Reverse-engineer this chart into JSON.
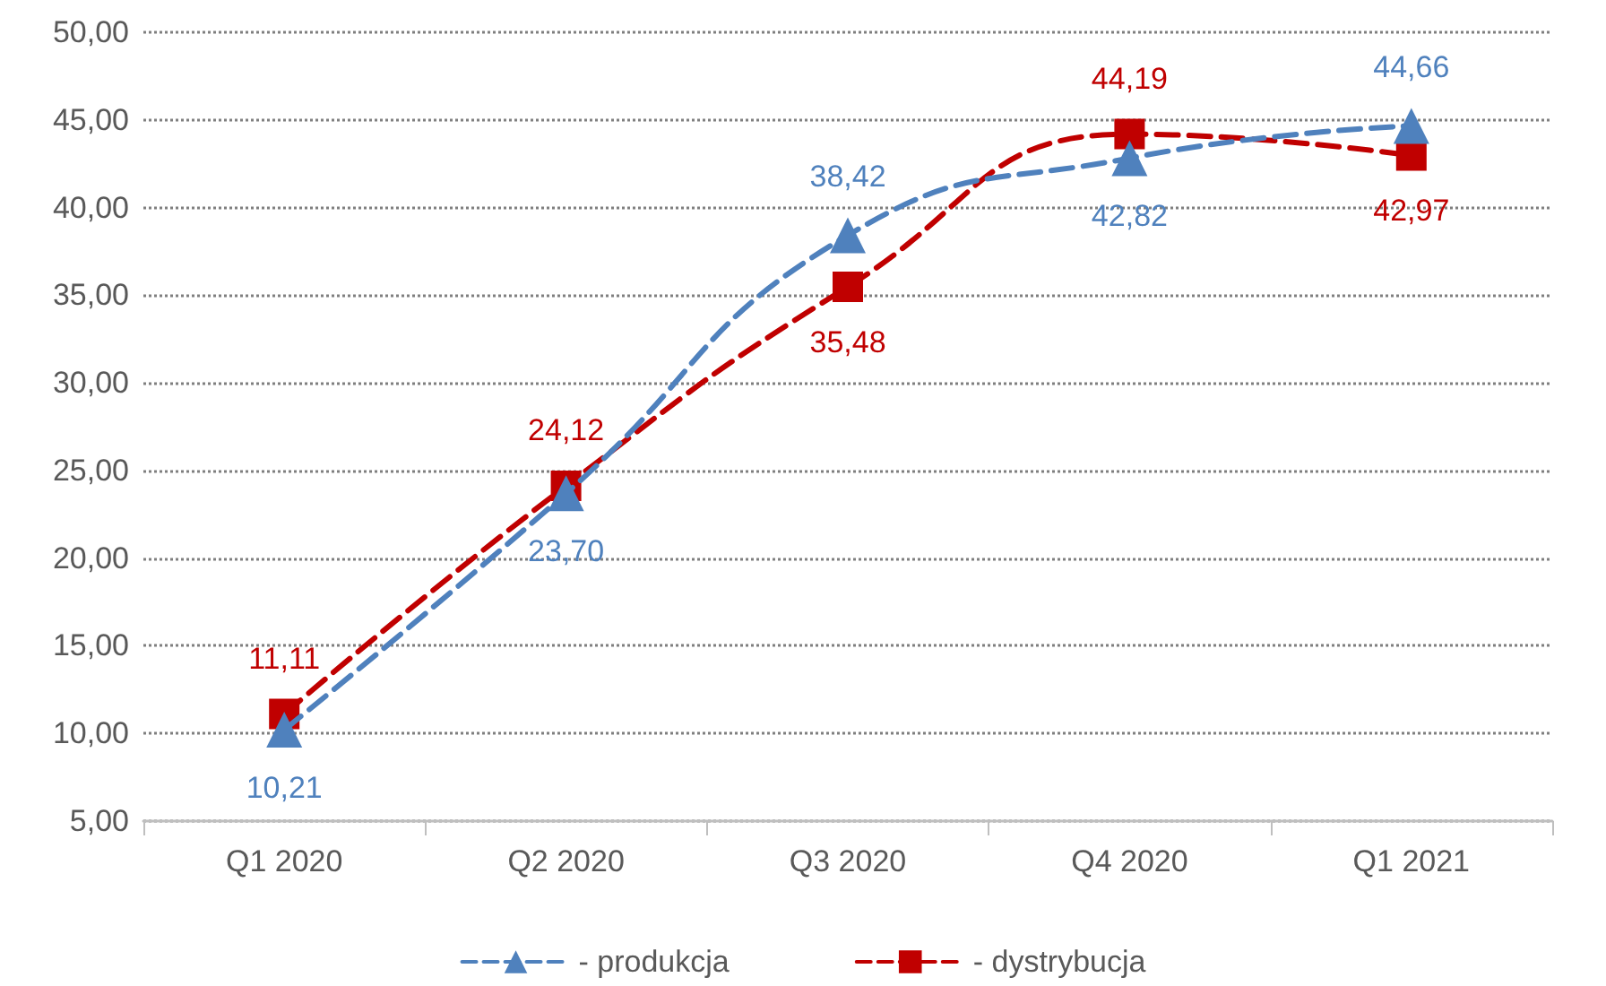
{
  "chart_data": {
    "type": "line",
    "categories": [
      "Q1 2020",
      "Q2 2020",
      "Q3 2020",
      "Q4 2020",
      "Q1 2021"
    ],
    "series": [
      {
        "name": "- produkcja",
        "color": "#4f81bd",
        "marker": "triangle",
        "values": [
          10.21,
          23.7,
          38.42,
          42.82,
          44.66
        ],
        "value_labels": [
          "10,21",
          "23,70",
          "38,42",
          "42,82",
          "44,66"
        ]
      },
      {
        "name": "- dystrybucja",
        "color": "#c00000",
        "marker": "square",
        "values": [
          11.11,
          24.12,
          35.48,
          44.19,
          42.97
        ],
        "value_labels": [
          "11,11",
          "24,12",
          "35,48",
          "44,19",
          "42,97"
        ]
      }
    ],
    "ylim": [
      5,
      50
    ],
    "yticks": [
      {
        "value": 5,
        "label": "5,00"
      },
      {
        "value": 10,
        "label": "10,00"
      },
      {
        "value": 15,
        "label": "15,00"
      },
      {
        "value": 20,
        "label": "20,00"
      },
      {
        "value": 25,
        "label": "25,00"
      },
      {
        "value": 30,
        "label": "30,00"
      },
      {
        "value": 35,
        "label": "35,00"
      },
      {
        "value": 40,
        "label": "40,00"
      },
      {
        "value": 45,
        "label": "45,00"
      },
      {
        "value": 50,
        "label": "50,00"
      }
    ],
    "grid": "y",
    "legend": "bottom",
    "line_style": "dashed"
  }
}
